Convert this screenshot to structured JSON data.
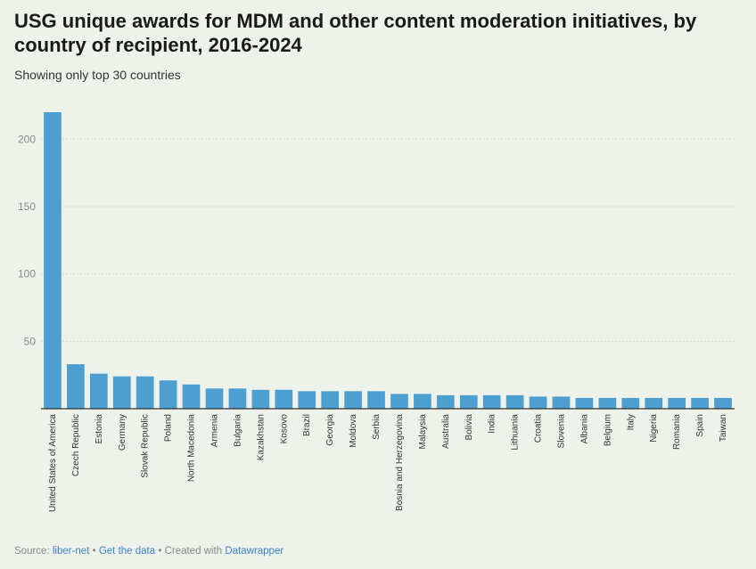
{
  "header": {
    "title": "USG unique awards for MDM and other content moderation initiatives, by country of recipient, 2016-2024",
    "subtitle": "Showing only top 30 countries"
  },
  "footer": {
    "source_prefix": "Source:",
    "source_link": "liber-net",
    "separator1": "•",
    "get_data": "Get the data",
    "separator2": "•",
    "created_with": "Created with",
    "tool": "Datawrapper"
  },
  "colors": {
    "bar": "#4e9fd1",
    "background": "#edf2ea",
    "grid": "#d8ddd5",
    "baseline": "#333333"
  },
  "chart_data": {
    "type": "bar",
    "title": "USG unique awards for MDM and other content moderation initiatives, by country of recipient, 2016-2024",
    "subtitle": "Showing only top 30 countries",
    "categories": [
      "United States of America",
      "Czech Republic",
      "Estonia",
      "Germany",
      "Slovak Republic",
      "Poland",
      "North Macedonia",
      "Armenia",
      "Bulgaria",
      "Kazakhstan",
      "Kosovo",
      "Brazil",
      "Georgia",
      "Moldova",
      "Serbia",
      "Bosnia and Herzegovina",
      "Malaysia",
      "Australia",
      "Bolivia",
      "India",
      "Lithuania",
      "Croatia",
      "Slovenia",
      "Albania",
      "Belgium",
      "Italy",
      "Nigeria",
      "Romania",
      "Spain",
      "Taiwan"
    ],
    "values": [
      220,
      33,
      26,
      24,
      24,
      21,
      18,
      15,
      15,
      14,
      14,
      13,
      13,
      13,
      13,
      11,
      11,
      10,
      10,
      10,
      10,
      9,
      9,
      8,
      8,
      8,
      8,
      8,
      8,
      8
    ],
    "yticks": [
      50,
      100,
      150,
      200
    ],
    "ylim": [
      0,
      220
    ],
    "grid": true,
    "legend": "none"
  }
}
